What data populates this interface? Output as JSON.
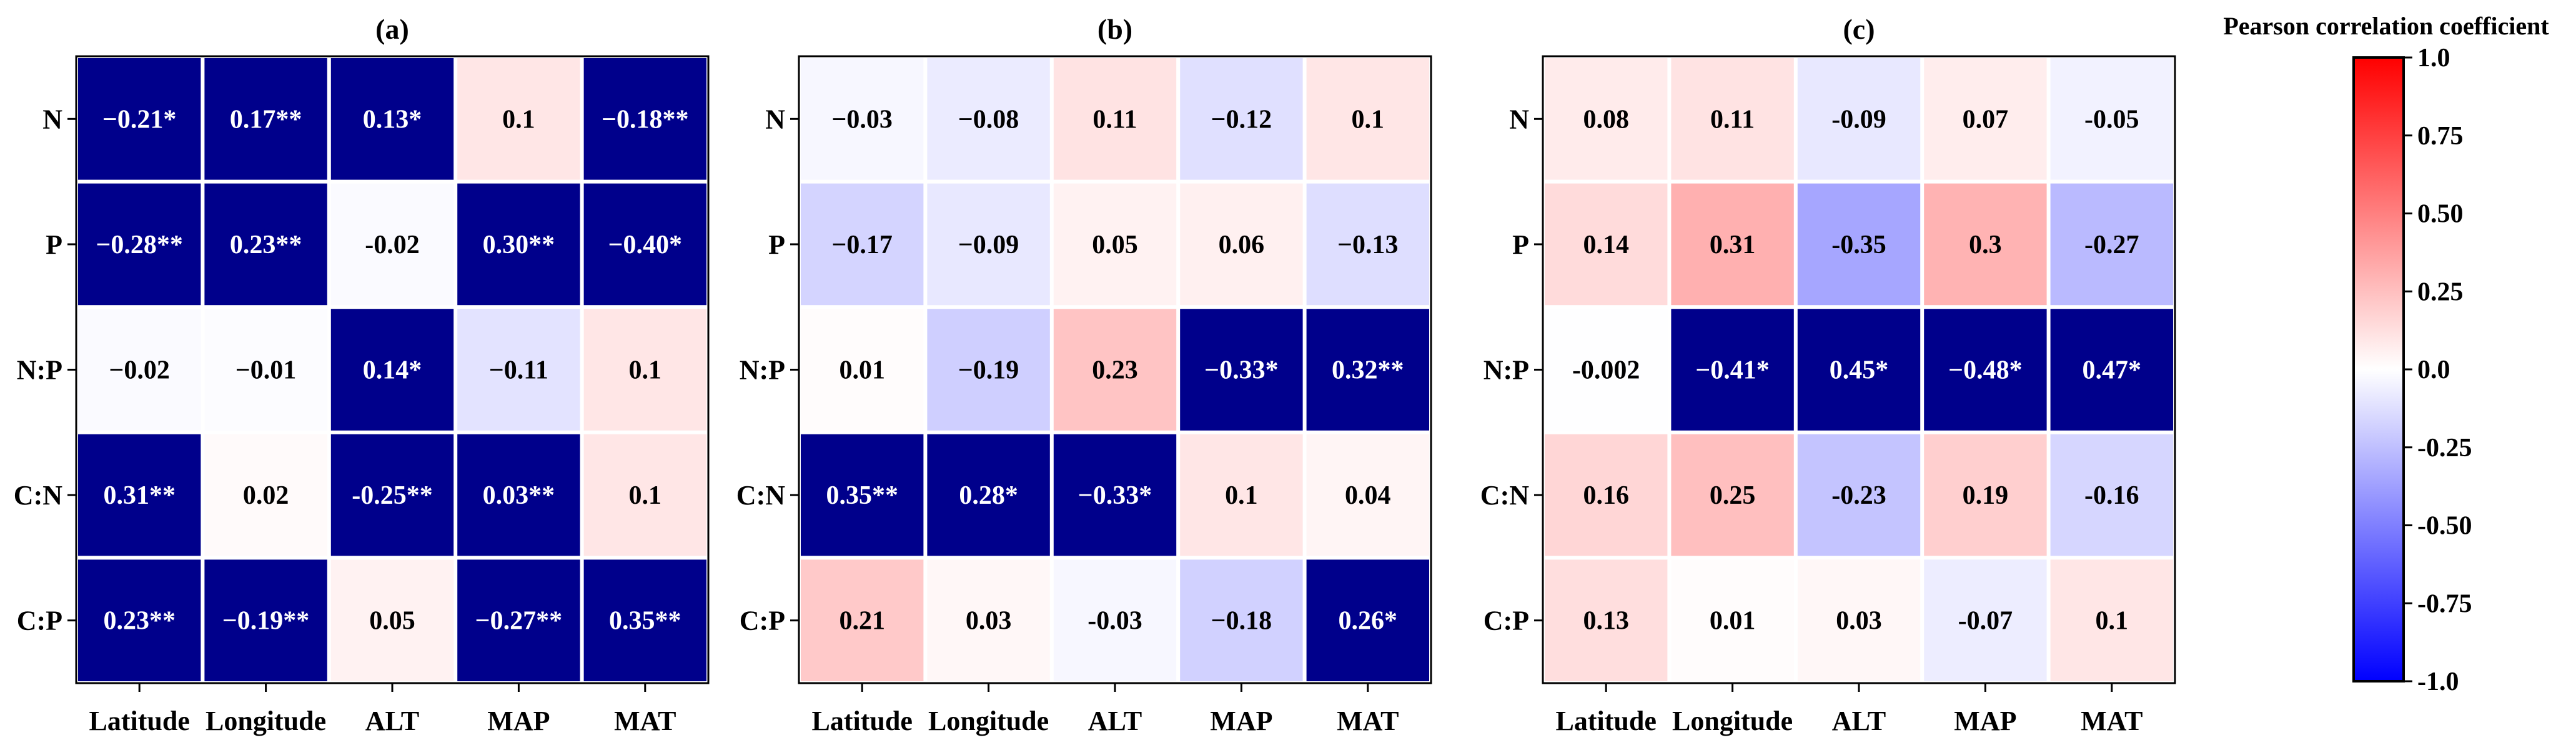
{
  "chart_data": {
    "type": "heatmap",
    "rows": [
      "N",
      "P",
      "N:P",
      "C:N",
      "C:P"
    ],
    "columns": [
      "Latitude",
      "Longitude",
      "ALT",
      "MAP",
      "MAT"
    ],
    "colorbar": {
      "title": "Pearson correlation coefficient",
      "range": [
        -1.0,
        1.0
      ],
      "ticks": [
        "1.0",
        "0.75",
        "0.50",
        "0.25",
        "0.0",
        "-0.25",
        "-0.50",
        "-0.75",
        "-1.0"
      ],
      "colors": {
        "negative": "#0000ff",
        "neutral": "#ffffff",
        "positive": "#ff0000",
        "significant": "#00008b"
      }
    },
    "panels": [
      {
        "title": "(a)",
        "values": [
          [
            -0.21,
            0.17,
            0.13,
            0.1,
            -0.18
          ],
          [
            -0.28,
            0.23,
            -0.02,
            0.3,
            -0.4
          ],
          [
            -0.02,
            -0.01,
            0.14,
            -0.11,
            0.1
          ],
          [
            0.31,
            0.02,
            -0.25,
            0.03,
            0.1
          ],
          [
            0.23,
            -0.19,
            0.05,
            -0.27,
            0.35
          ]
        ],
        "labels": [
          [
            "−0.21*",
            "0.17**",
            "0.13*",
            "0.1",
            "−0.18**"
          ],
          [
            "−0.28**",
            "0.23**",
            "-0.02",
            "0.30**",
            "−0.40*"
          ],
          [
            "−0.02",
            "−0.01",
            "0.14*",
            "−0.11",
            "0.1"
          ],
          [
            "0.31**",
            "0.02",
            "-0.25**",
            "0.03**",
            "0.1"
          ],
          [
            "0.23**",
            "−0.19**",
            "0.05",
            "−0.27**",
            "0.35**"
          ]
        ]
      },
      {
        "title": "(b)",
        "values": [
          [
            -0.03,
            -0.08,
            0.11,
            -0.12,
            0.1
          ],
          [
            -0.17,
            -0.09,
            0.05,
            0.06,
            -0.13
          ],
          [
            0.01,
            -0.19,
            0.23,
            -0.33,
            0.32
          ],
          [
            0.35,
            0.28,
            -0.33,
            0.1,
            0.04
          ],
          [
            0.21,
            0.03,
            -0.03,
            -0.18,
            0.26
          ]
        ],
        "labels": [
          [
            "−0.03",
            "−0.08",
            "0.11",
            "−0.12",
            "0.1"
          ],
          [
            "−0.17",
            "−0.09",
            "0.05",
            "0.06",
            "−0.13"
          ],
          [
            "0.01",
            "−0.19",
            "0.23",
            "−0.33*",
            "0.32**"
          ],
          [
            "0.35**",
            "0.28*",
            "−0.33*",
            "0.1",
            "0.04"
          ],
          [
            "0.21",
            "0.03",
            "-0.03",
            "−0.18",
            "0.26*"
          ]
        ]
      },
      {
        "title": "(c)",
        "values": [
          [
            0.08,
            0.11,
            -0.09,
            0.07,
            -0.05
          ],
          [
            0.14,
            0.31,
            -0.35,
            0.3,
            -0.27
          ],
          [
            -0.002,
            -0.41,
            0.45,
            -0.48,
            0.47
          ],
          [
            0.16,
            0.25,
            -0.23,
            0.19,
            -0.16
          ],
          [
            0.13,
            0.01,
            0.03,
            -0.07,
            0.1
          ]
        ],
        "labels": [
          [
            "0.08",
            "0.11",
            "-0.09",
            "0.07",
            "-0.05"
          ],
          [
            "0.14",
            "0.31",
            "-0.35",
            "0.3",
            "-0.27"
          ],
          [
            "-0.002",
            "−0.41*",
            "0.45*",
            "−0.48*",
            "0.47*"
          ],
          [
            "0.16",
            "0.25",
            "-0.23",
            "0.19",
            "-0.16"
          ],
          [
            "0.13",
            "0.01",
            "0.03",
            "-0.07",
            "0.1"
          ]
        ]
      }
    ]
  }
}
